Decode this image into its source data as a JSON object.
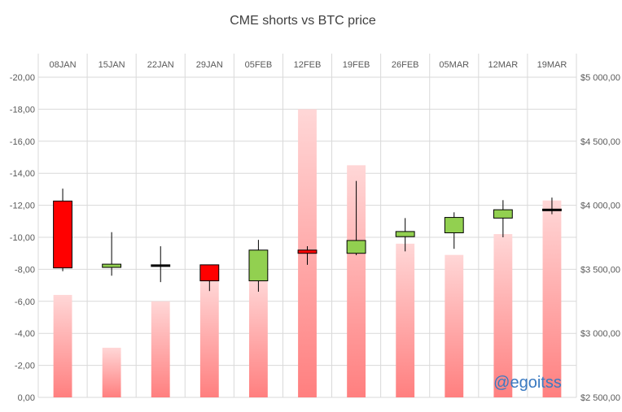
{
  "chart_data": {
    "type": "candlestick+bar",
    "title": "CME shorts vs BTC price",
    "categories": [
      "08JAN",
      "15JAN",
      "22JAN",
      "29JAN",
      "05FEB",
      "12FEB",
      "19FEB",
      "26FEB",
      "05MAR",
      "12MAR",
      "19MAR"
    ],
    "left_axis": {
      "ylim": [
        0,
        -20
      ],
      "ticks": [
        "-20,00",
        "-18,00",
        "-16,00",
        "-14,00",
        "-12,00",
        "-10,00",
        "-8,00",
        "-6,00",
        "-4,00",
        "-2,00",
        "0,00"
      ]
    },
    "right_axis": {
      "ylim": [
        2500,
        5000
      ],
      "ticks": [
        "$5 000,00",
        "$4 500,00",
        "$4 000,00",
        "$3 500,00",
        "$3 000,00",
        "$2 500,00"
      ]
    },
    "series": [
      {
        "kind": "bar",
        "axis": "left",
        "values": [
          -6.4,
          -3.1,
          -6.0,
          -7.3,
          -7.4,
          -18.0,
          -14.5,
          -9.6,
          -8.9,
          -10.2,
          -12.3
        ]
      },
      {
        "kind": "candlestick",
        "axis": "right",
        "ohlc": [
          {
            "open": 4033,
            "high": 4130,
            "low": 3485,
            "close": 3511
          },
          {
            "open": 3515,
            "high": 3790,
            "low": 3450,
            "close": 3540
          },
          {
            "open": 3530,
            "high": 3680,
            "low": 3400,
            "close": 3535
          },
          {
            "open": 3535,
            "high": 3535,
            "low": 3330,
            "close": 3410
          },
          {
            "open": 3410,
            "high": 3730,
            "low": 3325,
            "close": 3650
          },
          {
            "open": 3650,
            "high": 3680,
            "low": 3535,
            "close": 3625
          },
          {
            "open": 3625,
            "high": 4190,
            "low": 3610,
            "close": 3725
          },
          {
            "open": 3755,
            "high": 3900,
            "low": 3640,
            "close": 3795
          },
          {
            "open": 3785,
            "high": 3945,
            "low": 3660,
            "close": 3905
          },
          {
            "open": 3900,
            "high": 4040,
            "low": 3750,
            "close": 3965
          },
          {
            "open": 3960,
            "high": 4060,
            "low": 3930,
            "close": 3970
          }
        ]
      }
    ],
    "colors": {
      "bar_top": "#ffd7d7",
      "bar_bottom": "#ff7f7f",
      "candle_down": "#ff0000",
      "candle_up": "#92d050",
      "candle_flat": "#000000",
      "grid": "#d9d9d9",
      "watermark": "#3a7ac2"
    },
    "grid": true,
    "legend": "none",
    "watermark": "@egoitss"
  }
}
